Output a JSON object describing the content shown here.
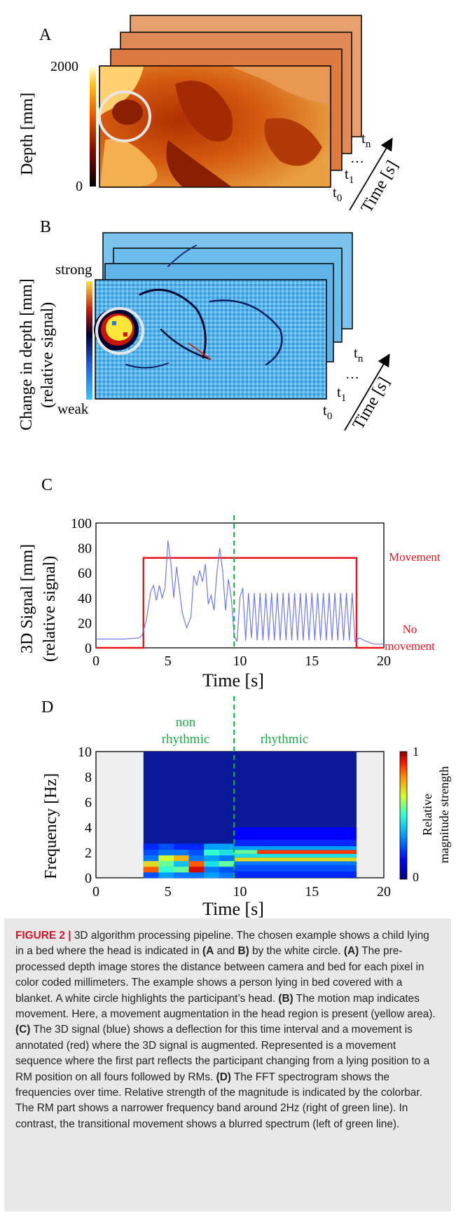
{
  "panels": {
    "A": {
      "letter": "A",
      "ylabel": "Depth [mm]",
      "colorbar_max": "2000",
      "colorbar_min": "0",
      "time_labels": [
        "t",
        "t",
        "t"
      ],
      "time_subs": [
        "0",
        "1",
        "n"
      ],
      "ellipsis": "…",
      "time_axis": "Time [s]"
    },
    "B": {
      "letter": "B",
      "ylabel_line1": "Change in depth [mm]",
      "ylabel_line2": "(relative signal)",
      "colorbar_top": "strong",
      "colorbar_bottom": "weak",
      "time_labels": [
        "t",
        "t",
        "t"
      ],
      "time_subs": [
        "0",
        "1",
        "n"
      ],
      "ellipsis": "…",
      "time_axis": "Time [s]"
    },
    "C": {
      "letter": "C",
      "ylabel_line1": "3D Signal [mm]",
      "ylabel_line2": "(relative signal)",
      "xlabel": "Time [s]",
      "movement_label": "Movement",
      "no_movement_label_1": "No",
      "no_movement_label_2": "movement",
      "colors": {
        "signal": "#6f78e8",
        "movement": "#e8141e",
        "divider": "#1faa4a"
      }
    },
    "D": {
      "letter": "D",
      "ylabel": "Frequency [Hz]",
      "xlabel": "Time [s]",
      "non_rhythmic_1": "non",
      "non_rhythmic_2": "rhythmic",
      "rhythmic": "rhythmic",
      "colorbar_top": "1",
      "colorbar_bottom": "0",
      "colorbar_label_1": "Relative",
      "colorbar_label_2": "magnitude strength"
    }
  },
  "chart_data": [
    {
      "type": "line",
      "panel": "C",
      "xlabel": "Time [s]",
      "ylabel": "3D Signal [mm] (relative signal)",
      "xlim": [
        0,
        20
      ],
      "ylim": [
        0,
        100
      ],
      "x_ticks": [
        0,
        5,
        10,
        15,
        20
      ],
      "y_ticks": [
        0,
        20,
        40,
        60,
        80,
        100
      ],
      "divider_x": 9.6,
      "series": [
        {
          "name": "Movement",
          "x": [
            0,
            3.3,
            3.3,
            18.1,
            18.1,
            20
          ],
          "values": [
            0,
            0,
            72,
            72,
            0,
            0
          ]
        },
        {
          "x": [
            0,
            1,
            2,
            3,
            3.2,
            3.5,
            3.8,
            4.0,
            4.2,
            4.4,
            4.6,
            4.8,
            5.0,
            5.2,
            5.4,
            5.6,
            5.8,
            6.0,
            6.3,
            6.6,
            6.8,
            7.0,
            7.2,
            7.4,
            7.6,
            7.8,
            8.0,
            8.2,
            8.4,
            8.6,
            8.8,
            9.0,
            9.2,
            9.4,
            9.6,
            9.8,
            10.0,
            10.2,
            10.4,
            10.6,
            10.8,
            11.0,
            11.2,
            11.4,
            11.6,
            11.8,
            12.0,
            12.2,
            12.4,
            12.6,
            12.8,
            13.0,
            13.2,
            13.4,
            13.6,
            13.8,
            14.0,
            14.2,
            14.4,
            14.6,
            14.8,
            15.0,
            15.2,
            15.4,
            15.6,
            15.8,
            16.0,
            16.2,
            16.4,
            16.6,
            16.8,
            17.0,
            17.2,
            17.4,
            17.6,
            17.8,
            18.0,
            18.3,
            18.8,
            19.3,
            20
          ],
          "values": [
            7,
            7,
            7,
            8,
            10,
            22,
            45,
            50,
            38,
            50,
            40,
            48,
            86,
            68,
            40,
            65,
            46,
            28,
            16,
            25,
            58,
            50,
            62,
            53,
            67,
            35,
            42,
            30,
            60,
            80,
            62,
            30,
            55,
            40,
            10,
            5,
            40,
            48,
            6,
            44,
            8,
            44,
            6,
            44,
            6,
            44,
            6,
            44,
            6,
            44,
            6,
            44,
            6,
            44,
            6,
            44,
            6,
            44,
            6,
            44,
            6,
            44,
            6,
            44,
            6,
            44,
            6,
            44,
            6,
            44,
            6,
            44,
            6,
            44,
            6,
            44,
            5,
            8,
            5,
            3,
            3
          ]
        }
      ]
    },
    {
      "type": "heatmap",
      "panel": "D",
      "xlabel": "Time [s]",
      "ylabel": "Frequency [Hz]",
      "xlim": [
        0,
        20
      ],
      "ylim": [
        0,
        10
      ],
      "x_ticks": [
        0,
        5,
        10,
        15,
        20
      ],
      "y_ticks": [
        0,
        2,
        4,
        6,
        8,
        10
      ],
      "data_xlim": [
        3.3,
        18.1
      ],
      "divider_x": 9.6,
      "colorbar_range": [
        0,
        1
      ]
    }
  ]
}
